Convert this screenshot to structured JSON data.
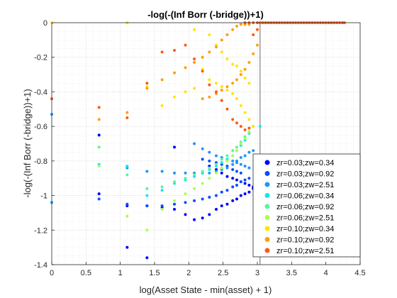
{
  "chart_data": {
    "type": "scatter",
    "title": "-log(-(Inf Borr (-bridge))+1)",
    "xlabel": "log(Asset State - min(asset) + 1)",
    "ylabel": "-log(-(Inf Borr (-bridge))+1)",
    "xlim": [
      0,
      4.5
    ],
    "ylim": [
      -1.4,
      0
    ],
    "xticks": [
      "0",
      "0.5",
      "1",
      "1.5",
      "2",
      "2.5",
      "3",
      "3.5",
      "4",
      "4.5"
    ],
    "yticks": [
      "0",
      "-0.2",
      "-0.4",
      "-0.6",
      "-0.8",
      "-1",
      "-1.2",
      "-1.4"
    ],
    "grid": true,
    "minor_grid": true,
    "legend_position": "bottom-right",
    "vertical_line_x": 3.04,
    "series": [
      {
        "name": "zr=0.03;zw=0.34",
        "color": "#0000ff",
        "points": [
          [
            0.69,
            -0.65
          ],
          [
            1.79,
            -0.72
          ],
          [
            2.3,
            -0.83
          ],
          [
            2.4,
            -0.85
          ],
          [
            2.48,
            -0.87
          ],
          [
            2.56,
            -0.89
          ],
          [
            2.64,
            -0.9
          ],
          [
            2.7,
            -0.91
          ],
          [
            2.76,
            -0.92
          ],
          [
            2.82,
            -0.93
          ],
          [
            2.88,
            -0.94
          ],
          [
            2.94,
            -0.95
          ],
          [
            0.69,
            -0.99
          ],
          [
            1.1,
            -1.06
          ],
          [
            1.39,
            -1.06
          ],
          [
            1.61,
            -1.07
          ],
          [
            1.79,
            -1.08
          ],
          [
            1.95,
            -1.11
          ],
          [
            2.08,
            -1.14
          ],
          [
            2.2,
            -1.13
          ],
          [
            2.3,
            -1.11
          ],
          [
            2.4,
            -1.08
          ],
          [
            2.48,
            -1.06
          ],
          [
            2.56,
            -1.05
          ],
          [
            2.64,
            -1.03
          ],
          [
            2.7,
            -1.02
          ],
          [
            2.76,
            -1.0
          ],
          [
            2.82,
            -0.99
          ],
          [
            2.88,
            -0.98
          ],
          [
            2.94,
            -0.96
          ],
          [
            1.1,
            -1.3
          ],
          [
            1.39,
            -1.36
          ]
        ]
      },
      {
        "name": "zr=0.03;zw=0.92",
        "color": "#0a4cff",
        "points": [
          [
            0.69,
            -1.02
          ],
          [
            1.1,
            -1.05
          ],
          [
            1.39,
            -1.06
          ],
          [
            1.61,
            -1.06
          ],
          [
            1.79,
            -1.05
          ],
          [
            1.95,
            -1.04
          ],
          [
            2.08,
            -1.03
          ],
          [
            2.2,
            -1.02
          ],
          [
            2.3,
            -1.01
          ],
          [
            2.4,
            -1.0
          ],
          [
            2.48,
            -0.98
          ],
          [
            2.56,
            -0.97
          ],
          [
            2.64,
            -0.95
          ],
          [
            2.7,
            -0.94
          ],
          [
            2.76,
            -0.92
          ],
          [
            2.82,
            -0.91
          ],
          [
            2.88,
            -0.9
          ],
          [
            2.2,
            -0.79
          ],
          [
            2.3,
            -0.8
          ],
          [
            2.4,
            -0.81
          ],
          [
            2.48,
            -0.82
          ],
          [
            2.56,
            -0.83
          ],
          [
            2.64,
            -0.85
          ],
          [
            2.7,
            -0.86
          ],
          [
            2.76,
            -0.87
          ]
        ]
      },
      {
        "name": "zr=0.03;zw=2.51",
        "color": "#1e96ff",
        "points": [
          [
            0.0,
            -1.04
          ],
          [
            0.0,
            -0.53
          ],
          [
            1.1,
            -0.84
          ],
          [
            1.39,
            -0.86
          ],
          [
            1.61,
            -0.86
          ],
          [
            1.79,
            -0.87
          ],
          [
            1.95,
            -0.87
          ],
          [
            2.08,
            -0.87
          ],
          [
            2.2,
            -0.87
          ],
          [
            2.3,
            -0.87
          ],
          [
            2.4,
            -0.86
          ],
          [
            2.48,
            -0.85
          ],
          [
            2.56,
            -0.84
          ],
          [
            2.64,
            -0.82
          ],
          [
            2.7,
            -0.8
          ],
          [
            2.76,
            -0.78
          ],
          [
            2.82,
            -0.77
          ],
          [
            2.88,
            -0.75
          ],
          [
            2.94,
            -0.74
          ],
          [
            2.08,
            -0.7
          ],
          [
            2.2,
            -0.73
          ],
          [
            2.3,
            -0.75
          ],
          [
            2.4,
            -0.77
          ],
          [
            2.48,
            -0.78
          ],
          [
            2.56,
            -0.79
          ],
          [
            2.64,
            -0.8
          ],
          [
            2.7,
            -0.81
          ],
          [
            2.76,
            -0.82
          ],
          [
            2.82,
            -0.83
          ],
          [
            2.88,
            -0.84
          ]
        ]
      },
      {
        "name": "zr=0.06;zw=0.34",
        "color": "#14e6f0",
        "points": [
          [
            0.69,
            -0.82
          ],
          [
            1.1,
            -0.83
          ],
          [
            1.39,
            -1.0
          ],
          [
            1.61,
            -0.97
          ],
          [
            1.79,
            -0.93
          ],
          [
            1.95,
            -0.91
          ],
          [
            2.08,
            -0.89
          ],
          [
            2.2,
            -0.87
          ],
          [
            2.3,
            -0.85
          ],
          [
            2.4,
            -0.83
          ],
          [
            2.48,
            -0.81
          ],
          [
            2.56,
            -0.79
          ],
          [
            2.64,
            -0.77
          ],
          [
            2.7,
            -0.74
          ],
          [
            2.76,
            -0.71
          ],
          [
            2.82,
            -0.68
          ],
          [
            2.88,
            -0.64
          ],
          [
            2.94,
            -0.6
          ],
          [
            3.04,
            -0.6
          ]
        ]
      },
      {
        "name": "zr=0.06;zw=0.92",
        "color": "#5af59a",
        "points": [
          [
            0.69,
            -0.72
          ],
          [
            1.1,
            -0.88
          ],
          [
            1.39,
            -0.96
          ],
          [
            1.61,
            -0.95
          ],
          [
            1.79,
            -0.92
          ],
          [
            1.95,
            -0.9
          ],
          [
            2.08,
            -0.88
          ],
          [
            2.2,
            -0.86
          ],
          [
            2.3,
            -0.84
          ],
          [
            2.4,
            -0.82
          ],
          [
            2.48,
            -0.79
          ],
          [
            2.56,
            -0.77
          ],
          [
            2.64,
            -0.74
          ],
          [
            2.7,
            -0.72
          ],
          [
            2.76,
            -0.69
          ],
          [
            2.82,
            -0.66
          ],
          [
            2.88,
            -0.63
          ],
          [
            2.94,
            -0.6
          ]
        ]
      },
      {
        "name": "zr=0.06;zw=2.51",
        "color": "#aaff50",
        "points": [
          [
            0.69,
            -0.83
          ],
          [
            1.1,
            -1.12
          ],
          [
            1.39,
            -1.2
          ],
          [
            1.61,
            -1.08
          ],
          [
            1.79,
            -1.03
          ],
          [
            1.95,
            -0.99
          ],
          [
            2.08,
            -0.96
          ],
          [
            2.2,
            -0.93
          ],
          [
            2.3,
            -0.9
          ],
          [
            2.4,
            -0.87
          ],
          [
            2.48,
            -0.84
          ],
          [
            2.56,
            -0.8
          ],
          [
            2.64,
            -0.77
          ],
          [
            2.7,
            -0.74
          ],
          [
            2.76,
            -0.7
          ],
          [
            2.82,
            -0.67
          ],
          [
            2.88,
            -0.63
          ]
        ]
      },
      {
        "name": "zr=0.10;zw=0.34",
        "color": "#ffe600",
        "points": [
          [
            0.0,
            0.0
          ],
          [
            1.1,
            0.0
          ],
          [
            1.39,
            -0.37
          ],
          [
            1.61,
            -0.48
          ],
          [
            1.79,
            -0.43
          ],
          [
            1.95,
            -0.4
          ],
          [
            2.08,
            -0.38
          ],
          [
            2.2,
            -0.27
          ],
          [
            2.3,
            -0.33
          ],
          [
            2.4,
            -0.35
          ],
          [
            2.48,
            -0.37
          ],
          [
            2.56,
            -0.39
          ],
          [
            2.64,
            -0.41
          ],
          [
            2.7,
            -0.44
          ],
          [
            2.76,
            -0.48
          ],
          [
            2.82,
            -0.52
          ],
          [
            2.88,
            -0.56
          ],
          [
            2.94,
            -0.6
          ],
          [
            2.08,
            -0.04
          ],
          [
            2.3,
            -0.07
          ],
          [
            2.4,
            -0.13
          ],
          [
            2.48,
            -0.17
          ],
          [
            2.56,
            -0.21
          ],
          [
            2.64,
            -0.24
          ],
          [
            2.7,
            -0.25
          ],
          [
            2.76,
            -0.28
          ],
          [
            2.82,
            -0.32
          ],
          [
            2.88,
            -0.35
          ]
        ]
      },
      {
        "name": "zr=0.10;zw=0.92",
        "color": "#ffa00a",
        "points": [
          [
            0.69,
            -0.56
          ],
          [
            1.1,
            -0.52
          ],
          [
            1.39,
            -0.38
          ],
          [
            1.61,
            -0.33
          ],
          [
            1.79,
            -0.29
          ],
          [
            1.95,
            -0.26
          ],
          [
            2.08,
            -0.23
          ],
          [
            2.2,
            -0.2
          ],
          [
            2.3,
            -0.17
          ],
          [
            2.4,
            -0.14
          ],
          [
            2.48,
            -0.1
          ],
          [
            2.56,
            -0.07
          ],
          [
            2.64,
            -0.04
          ],
          [
            2.7,
            -0.02
          ],
          [
            2.76,
            -0.01
          ],
          [
            2.82,
            -0.01
          ],
          [
            2.88,
            -0.01
          ],
          [
            2.2,
            -0.44
          ],
          [
            2.3,
            -0.43
          ],
          [
            2.4,
            -0.41
          ],
          [
            2.48,
            -0.39
          ],
          [
            2.56,
            -0.37
          ],
          [
            2.64,
            -0.35
          ],
          [
            2.7,
            -0.33
          ],
          [
            2.76,
            -0.3
          ],
          [
            2.82,
            -0.27
          ],
          [
            2.88,
            -0.23
          ],
          [
            2.94,
            -0.18
          ],
          [
            3.0,
            -0.13
          ]
        ]
      },
      {
        "name": "zr=0.10;zw=2.51",
        "color": "#ff5a14",
        "points": [
          [
            0.0,
            -0.44
          ],
          [
            0.69,
            -0.49
          ],
          [
            1.1,
            -0.55
          ],
          [
            1.39,
            -0.35
          ],
          [
            1.61,
            -0.17
          ],
          [
            1.79,
            -0.16
          ],
          [
            1.95,
            -0.13
          ],
          [
            2.08,
            -0.21
          ],
          [
            2.2,
            -0.28
          ],
          [
            2.3,
            -0.36
          ],
          [
            2.4,
            -0.4
          ],
          [
            2.48,
            -0.45
          ],
          [
            2.56,
            -0.5
          ],
          [
            2.64,
            -0.56
          ],
          [
            2.7,
            -0.58
          ],
          [
            2.76,
            -0.6
          ],
          [
            2.82,
            -0.62
          ],
          [
            2.88,
            -0.61
          ],
          [
            2.94,
            -0.07
          ],
          [
            3.0,
            -0.04
          ],
          [
            3.04,
            0.0
          ],
          [
            3.08,
            0.0
          ],
          [
            3.12,
            0.0
          ],
          [
            3.16,
            0.0
          ],
          [
            3.2,
            0.0
          ],
          [
            3.24,
            0.0
          ],
          [
            3.28,
            0.0
          ],
          [
            3.32,
            0.0
          ],
          [
            3.36,
            0.0
          ],
          [
            3.4,
            0.0
          ],
          [
            3.44,
            0.0
          ],
          [
            3.48,
            0.0
          ],
          [
            3.52,
            0.0
          ],
          [
            3.56,
            0.0
          ],
          [
            3.6,
            0.0
          ],
          [
            3.64,
            0.0
          ],
          [
            3.68,
            0.0
          ],
          [
            3.72,
            0.0
          ],
          [
            3.76,
            0.0
          ],
          [
            3.8,
            0.0
          ],
          [
            3.84,
            0.0
          ],
          [
            3.88,
            0.0
          ],
          [
            3.92,
            0.0
          ],
          [
            3.96,
            0.0
          ],
          [
            4.0,
            0.0
          ],
          [
            4.04,
            0.0
          ],
          [
            4.08,
            0.0
          ],
          [
            4.12,
            0.0
          ],
          [
            4.16,
            0.0
          ],
          [
            4.2,
            0.0
          ],
          [
            4.24,
            0.0
          ],
          [
            4.27,
            0.0
          ],
          [
            2.82,
            0.0
          ],
          [
            2.88,
            0.0
          ],
          [
            2.94,
            0.0
          ],
          [
            3.0,
            0.0
          ]
        ]
      }
    ]
  }
}
